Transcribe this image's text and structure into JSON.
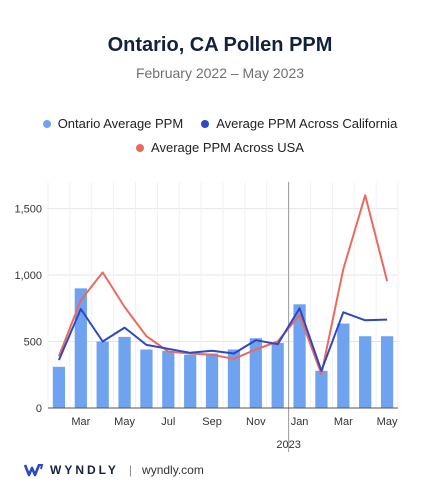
{
  "title": "Ontario, CA Pollen PPM",
  "subtitle": "February 2022 – May 2023",
  "legend": [
    {
      "label": "Ontario Average PPM",
      "color": "#6fa3ef"
    },
    {
      "label": "Average PPM Across California",
      "color": "#2e47c4"
    },
    {
      "label": "Average PPM Across USA",
      "color": "#ea6a60"
    }
  ],
  "footer": {
    "brand": "WYNDLY",
    "url": "wyndly.com"
  },
  "chart_data": {
    "type": "bar",
    "categories": [
      "Feb 2022",
      "Mar 2022",
      "Apr 2022",
      "May 2022",
      "Jun 2022",
      "Jul 2022",
      "Aug 2022",
      "Sep 2022",
      "Oct 2022",
      "Nov 2022",
      "Dec 2022",
      "Jan 2023",
      "Feb 2023",
      "Mar 2023",
      "Apr 2023",
      "May 2023"
    ],
    "x_tick_labels": [
      "",
      "Mar",
      "",
      "May",
      "",
      "Jul",
      "",
      "Sep",
      "",
      "Nov",
      "",
      "Jan",
      "",
      "Mar",
      "",
      "May"
    ],
    "year_label": "2023",
    "ylim": [
      0,
      1700
    ],
    "y_ticks": [
      0,
      500,
      1000,
      1500
    ],
    "y_tick_labels": [
      "0",
      "500",
      "1,000",
      "1,500"
    ],
    "grid": true,
    "legend_position": "top",
    "series": [
      {
        "name": "Ontario Average PPM",
        "kind": "bar",
        "color": "#6fa3ef",
        "values": [
          310,
          900,
          500,
          535,
          440,
          430,
          400,
          410,
          440,
          525,
          490,
          780,
          280,
          635,
          540,
          540
        ]
      },
      {
        "name": "Average PPM Across California",
        "kind": "line",
        "color": "#2e47c4",
        "values": [
          360,
          745,
          500,
          605,
          475,
          445,
          415,
          430,
          410,
          510,
          480,
          750,
          280,
          720,
          660,
          665
        ]
      },
      {
        "name": "Average PPM Across USA",
        "kind": "line",
        "color": "#ea6a60",
        "values": [
          390,
          810,
          1020,
          760,
          540,
          425,
          410,
          400,
          370,
          440,
          500,
          700,
          255,
          1045,
          1600,
          955
        ]
      }
    ]
  }
}
